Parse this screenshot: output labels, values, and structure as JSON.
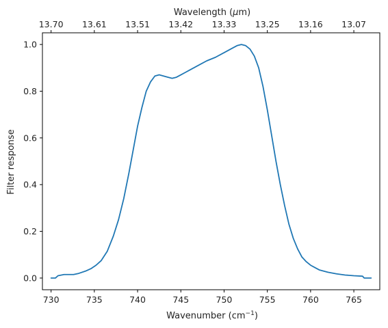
{
  "chart_data": {
    "type": "line",
    "xlabel": "Wavenumber (cm",
    "xlabel_sup": "−1",
    "xlabel_suffix": ")",
    "x2label": "Wavelength (",
    "x2label_mu": "μ",
    "x2label_suffix": "m)",
    "ylabel": "Filter response",
    "xlim": [
      729,
      768
    ],
    "ylim": [
      -0.05,
      1.05
    ],
    "x_ticks": [
      730,
      735,
      740,
      745,
      750,
      755,
      760,
      765
    ],
    "y_ticks": [
      0.0,
      0.2,
      0.4,
      0.6,
      0.8,
      1.0
    ],
    "y_tick_labels": [
      "0.0",
      "0.2",
      "0.4",
      "0.6",
      "0.8",
      "1.0"
    ],
    "top_ticks": [
      {
        "at": 730,
        "label": "13.70"
      },
      {
        "at": 735,
        "label": "13.61"
      },
      {
        "at": 740,
        "label": "13.51"
      },
      {
        "at": 745,
        "label": "13.42"
      },
      {
        "at": 750,
        "label": "13.33"
      },
      {
        "at": 755,
        "label": "13.25"
      },
      {
        "at": 760,
        "label": "13.16"
      },
      {
        "at": 765,
        "label": "13.07"
      }
    ],
    "grid": false,
    "series": [
      {
        "color": "#1f77b4",
        "x": [
          730.0,
          730.5,
          730.8,
          731.5,
          732.0,
          732.6,
          733.2,
          734.0,
          734.6,
          735.2,
          735.8,
          736.5,
          737.2,
          737.8,
          738.4,
          739.0,
          739.5,
          740.0,
          740.5,
          741.0,
          741.5,
          742.0,
          742.5,
          743.0,
          743.5,
          744.0,
          744.5,
          745.0,
          745.5,
          746.0,
          747.0,
          748.0,
          749.0,
          750.0,
          751.0,
          751.5,
          752.0,
          752.5,
          753.0,
          753.5,
          754.0,
          754.5,
          755.0,
          755.5,
          756.0,
          756.5,
          757.0,
          757.5,
          758.0,
          758.5,
          759.0,
          759.5,
          760.0,
          760.5,
          761.0,
          762.0,
          763.0,
          764.0,
          765.0,
          766.0,
          766.2,
          766.5,
          767.0
        ],
        "y": [
          0.0,
          0.0,
          0.01,
          0.015,
          0.015,
          0.015,
          0.02,
          0.03,
          0.04,
          0.055,
          0.075,
          0.115,
          0.18,
          0.25,
          0.34,
          0.45,
          0.55,
          0.65,
          0.73,
          0.8,
          0.84,
          0.865,
          0.87,
          0.865,
          0.86,
          0.855,
          0.86,
          0.87,
          0.88,
          0.89,
          0.91,
          0.93,
          0.945,
          0.965,
          0.985,
          0.995,
          1.0,
          0.995,
          0.98,
          0.95,
          0.9,
          0.82,
          0.72,
          0.61,
          0.5,
          0.4,
          0.31,
          0.23,
          0.17,
          0.125,
          0.09,
          0.07,
          0.055,
          0.045,
          0.035,
          0.025,
          0.018,
          0.013,
          0.01,
          0.008,
          0.0,
          0.0,
          0.0
        ]
      }
    ]
  }
}
